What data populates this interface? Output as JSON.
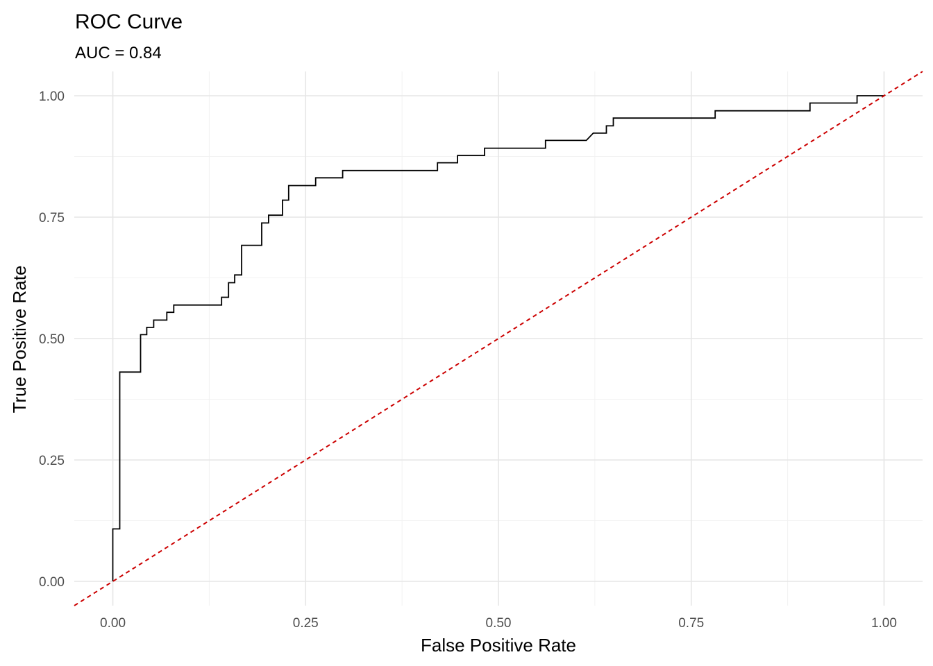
{
  "chart_data": {
    "type": "line",
    "title": "ROC Curve",
    "subtitle": "AUC = 0.84",
    "xlabel": "False Positive Rate",
    "ylabel": "True Positive Rate",
    "xlim": [
      -0.05,
      1.05
    ],
    "ylim": [
      -0.05,
      1.05
    ],
    "x_ticks": [
      0.0,
      0.25,
      0.5,
      0.75,
      1.0
    ],
    "x_tick_labels": [
      "0.00",
      "0.25",
      "0.50",
      "0.75",
      "1.00"
    ],
    "y_ticks": [
      0.0,
      0.25,
      0.5,
      0.75,
      1.0
    ],
    "y_tick_labels": [
      "0.00",
      "0.25",
      "0.50",
      "0.75",
      "1.00"
    ],
    "grid": true,
    "legend": "none",
    "series": [
      {
        "color": "#000000",
        "style": "solid",
        "x": [
          0.0,
          0.0,
          0.009,
          0.009,
          0.036,
          0.036,
          0.044,
          0.044,
          0.053,
          0.053,
          0.07,
          0.07,
          0.079,
          0.079,
          0.141,
          0.141,
          0.15,
          0.15,
          0.158,
          0.158,
          0.167,
          0.167,
          0.193,
          0.193,
          0.202,
          0.202,
          0.22,
          0.22,
          0.228,
          0.228,
          0.263,
          0.263,
          0.298,
          0.298,
          0.421,
          0.421,
          0.447,
          0.447,
          0.482,
          0.482,
          0.561,
          0.561,
          0.614,
          0.623,
          0.64,
          0.64,
          0.649,
          0.649,
          0.781,
          0.781,
          0.904,
          0.904,
          0.965,
          0.965,
          1.0
        ],
        "y": [
          0.0,
          0.108,
          0.108,
          0.431,
          0.431,
          0.508,
          0.508,
          0.523,
          0.523,
          0.538,
          0.538,
          0.554,
          0.554,
          0.569,
          0.569,
          0.585,
          0.585,
          0.615,
          0.615,
          0.631,
          0.631,
          0.692,
          0.692,
          0.738,
          0.738,
          0.754,
          0.754,
          0.785,
          0.785,
          0.815,
          0.815,
          0.831,
          0.831,
          0.846,
          0.846,
          0.862,
          0.862,
          0.877,
          0.877,
          0.892,
          0.892,
          0.908,
          0.908,
          0.923,
          0.923,
          0.938,
          0.938,
          0.954,
          0.954,
          0.969,
          0.969,
          0.985,
          0.985,
          1.0,
          1.0
        ]
      },
      {
        "color": "#cc0000",
        "style": "dashed",
        "x": [
          -0.05,
          1.05
        ],
        "y": [
          -0.05,
          1.05
        ]
      }
    ]
  }
}
